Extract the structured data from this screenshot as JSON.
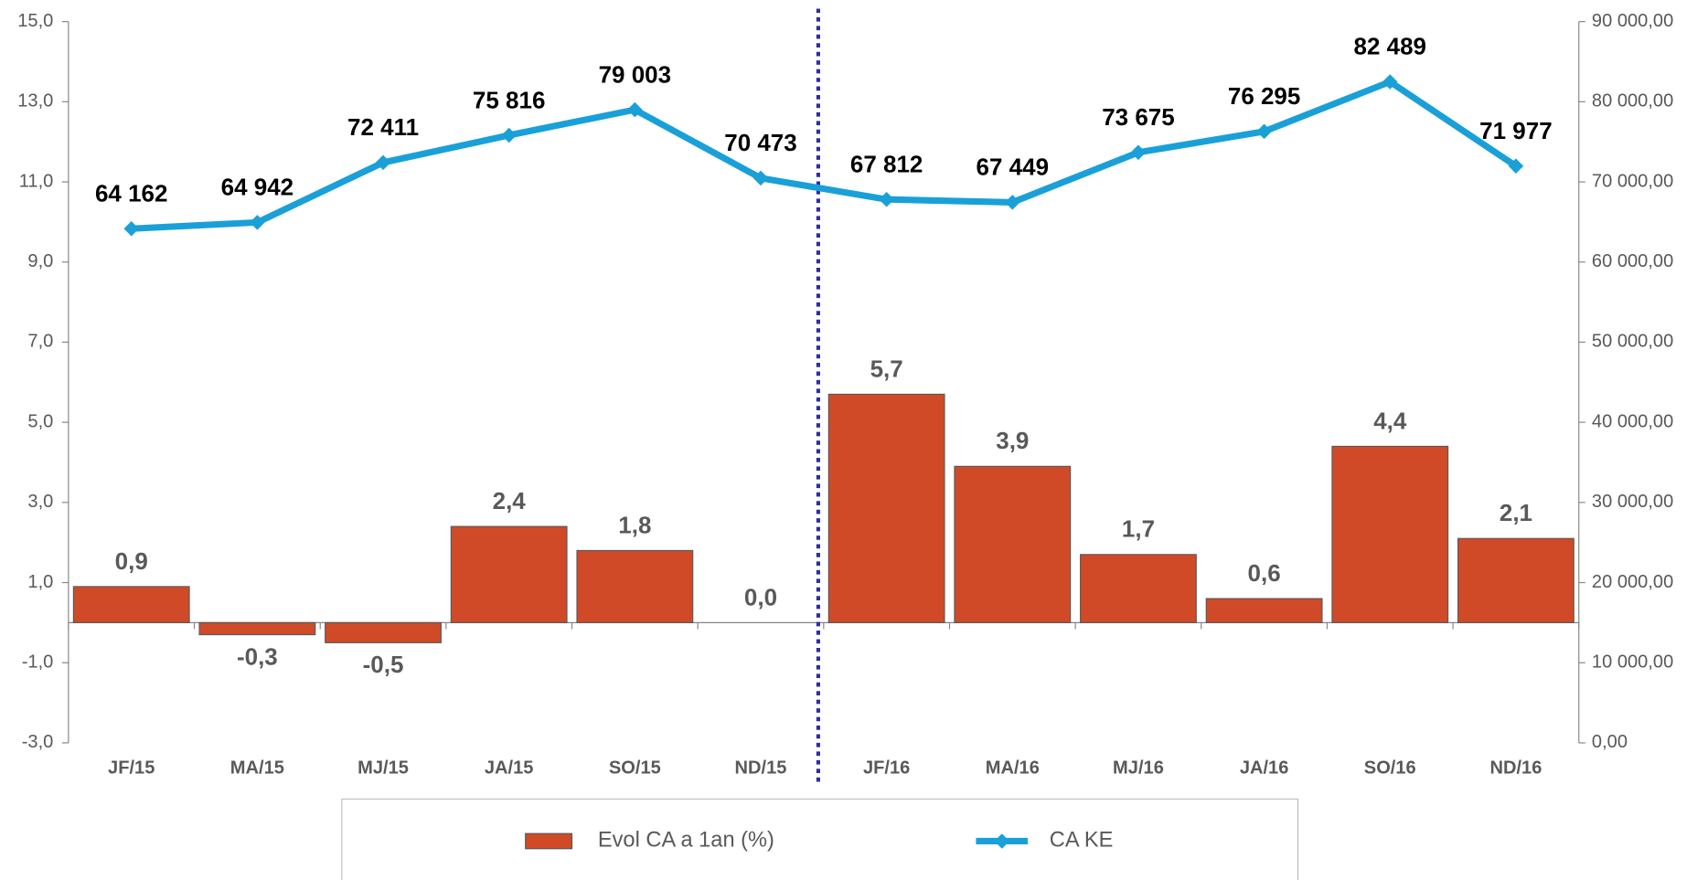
{
  "chart_data": {
    "type": "combo",
    "categories": [
      "JF/15",
      "MA/15",
      "MJ/15",
      "JA/15",
      "SO/15",
      "ND/15",
      "JF/16",
      "MA/16",
      "MJ/16",
      "JA/16",
      "SO/16",
      "ND/16"
    ],
    "series": [
      {
        "name": "Evol CA a 1an (%)",
        "type": "bar",
        "color": "#d04a27",
        "values": [
          0.9,
          -0.3,
          -0.5,
          2.4,
          1.8,
          0.0,
          5.7,
          3.9,
          1.7,
          0.6,
          4.4,
          2.1
        ],
        "value_labels": [
          "0,9",
          "-0,3",
          "-0,5",
          "2,4",
          "1,8",
          "0,0",
          "5,7",
          "3,9",
          "1,7",
          "0,6",
          "4,4",
          "2,1"
        ]
      },
      {
        "name": "CA KE",
        "type": "line",
        "axis": "y2",
        "color": "#1aa0d8",
        "values": [
          64162,
          64942,
          72411,
          75816,
          79003,
          70473,
          67812,
          67449,
          73675,
          76295,
          82489,
          71977
        ],
        "value_labels": [
          "64 162",
          "64 942",
          "72 411",
          "75 816",
          "79 003",
          "70 473",
          "67 812",
          "67 449",
          "73 675",
          "76 295",
          "82 489",
          "71 977"
        ]
      }
    ],
    "ylim": [
      -3,
      15
    ],
    "yticks": [
      {
        "value": -3,
        "label": "-3,0"
      },
      {
        "value": -1,
        "label": "-1,0"
      },
      {
        "value": 1,
        "label": "1,0"
      },
      {
        "value": 3,
        "label": "3,0"
      },
      {
        "value": 5,
        "label": "5,0"
      },
      {
        "value": 7,
        "label": "7,0"
      },
      {
        "value": 9,
        "label": "9,0"
      },
      {
        "value": 11,
        "label": "11,0"
      },
      {
        "value": 13,
        "label": "13,0"
      },
      {
        "value": 15,
        "label": "15,0"
      }
    ],
    "y2lim": [
      0,
      90000
    ],
    "y2ticks": [
      {
        "value": 0,
        "label": "0,00"
      },
      {
        "value": 10000,
        "label": "10 000,00"
      },
      {
        "value": 20000,
        "label": "20 000,00"
      },
      {
        "value": 30000,
        "label": "30 000,00"
      },
      {
        "value": 40000,
        "label": "40 000,00"
      },
      {
        "value": 50000,
        "label": "50 000,00"
      },
      {
        "value": 60000,
        "label": "60 000,00"
      },
      {
        "value": 70000,
        "label": "70 000,00"
      },
      {
        "value": 80000,
        "label": "80 000,00"
      },
      {
        "value": 90000,
        "label": "90 000,00"
      }
    ],
    "legend": "bottom",
    "grid": false
  }
}
